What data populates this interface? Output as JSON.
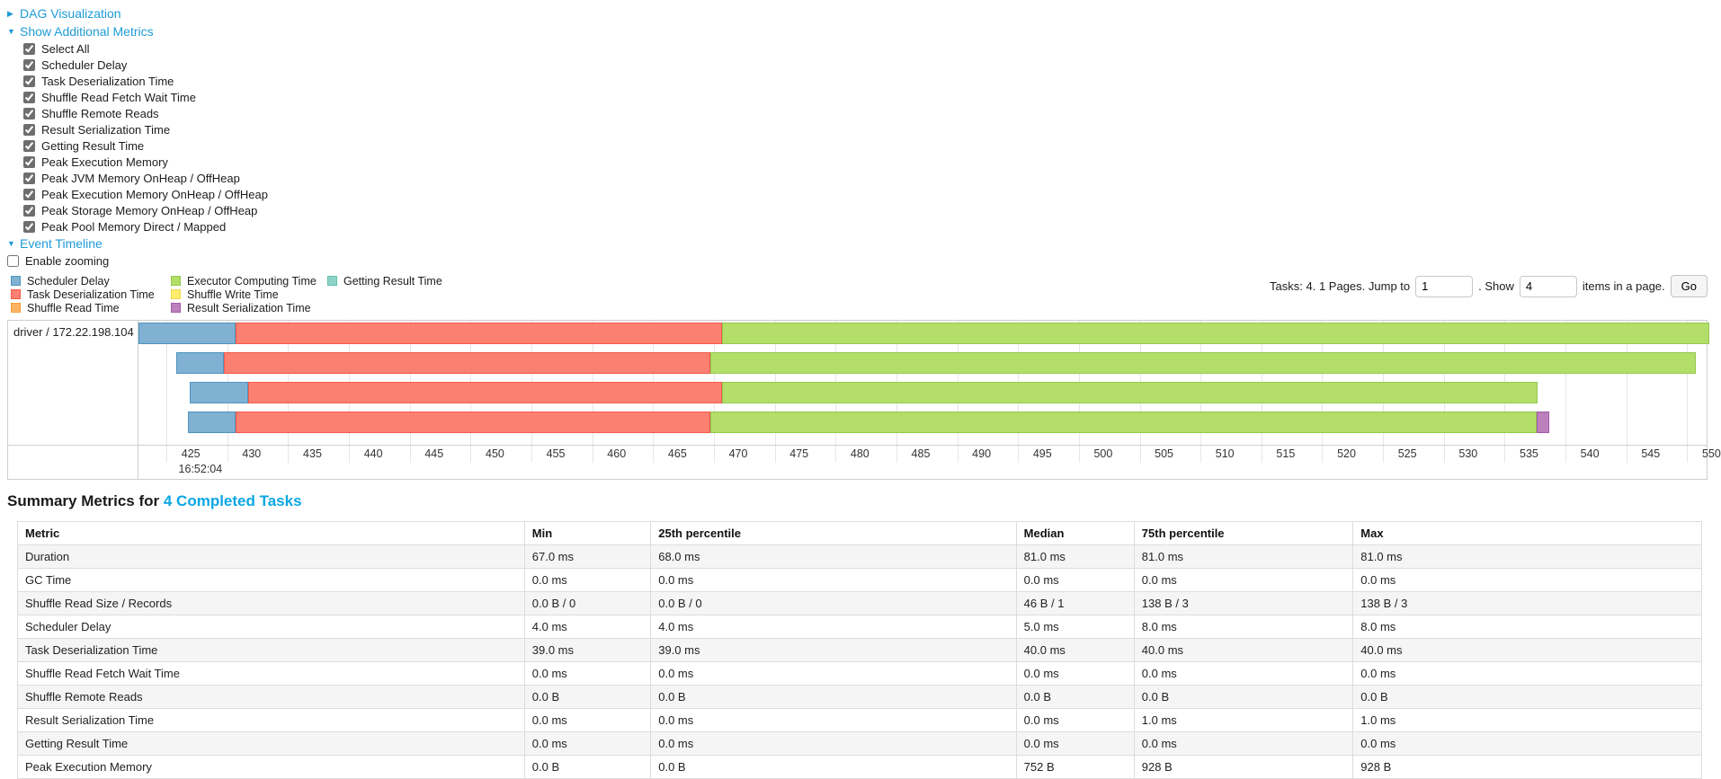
{
  "sections": {
    "dag": {
      "label": "DAG Visualization",
      "arrow": "▶"
    },
    "additional_metrics": {
      "label": "Show Additional Metrics",
      "arrow": "▼"
    },
    "event_timeline": {
      "label": "Event Timeline",
      "arrow": "▼"
    }
  },
  "metrics_checkboxes": [
    "Select All",
    "Scheduler Delay",
    "Task Deserialization Time",
    "Shuffle Read Fetch Wait Time",
    "Shuffle Remote Reads",
    "Result Serialization Time",
    "Getting Result Time",
    "Peak Execution Memory",
    "Peak JVM Memory OnHeap / OffHeap",
    "Peak Execution Memory OnHeap / OffHeap",
    "Peak Storage Memory OnHeap / OffHeap",
    "Peak Pool Memory Direct / Mapped"
  ],
  "enable_zooming_label": "Enable zooming",
  "palette": {
    "scheduler_delay": {
      "fill": "#80B1D3",
      "border": "#4E94BE"
    },
    "task_deserialization": {
      "fill": "#FB8072",
      "border": "#F6594B"
    },
    "shuffle_read": {
      "fill": "#FDB462",
      "border": "#F89D3B"
    },
    "executor_computing": {
      "fill": "#B3DE69",
      "border": "#94C94F"
    },
    "shuffle_write": {
      "fill": "#FFED6F",
      "border": "#EDD94E"
    },
    "result_serialization": {
      "fill": "#BC80BD",
      "border": "#A35CA5"
    },
    "getting_result": {
      "fill": "#8DD3C7",
      "border": "#66BFAF"
    }
  },
  "legend_columns": [
    [
      {
        "type": "scheduler_delay",
        "label": "Scheduler Delay"
      },
      {
        "type": "task_deserialization",
        "label": "Task Deserialization Time"
      },
      {
        "type": "shuffle_read",
        "label": "Shuffle Read Time"
      }
    ],
    [
      {
        "type": "executor_computing",
        "label": "Executor Computing Time"
      },
      {
        "type": "shuffle_write",
        "label": "Shuffle Write Time"
      },
      {
        "type": "result_serialization",
        "label": "Result Serialization Time"
      }
    ],
    [
      {
        "type": "getting_result",
        "label": "Getting Result Time"
      }
    ]
  ],
  "pagination": {
    "prefix": "Tasks: 4. 1 Pages. Jump to",
    "jump_value": "1",
    "between": ". Show",
    "show_value": "4",
    "suffix": "items in a page.",
    "go_label": "Go"
  },
  "event_timeline": {
    "type": "timeline",
    "row_label": "driver / 172.22.198.104",
    "axis": {
      "min": 420.7,
      "max": 549.6,
      "ticks": [
        425,
        430,
        435,
        440,
        445,
        450,
        455,
        460,
        465,
        470,
        475,
        480,
        485,
        490,
        495,
        500,
        505,
        510,
        515,
        520,
        525,
        530,
        535,
        540,
        545,
        550
      ],
      "time_label": "16:52:04",
      "time_label_tick": 425
    },
    "tasks": [
      {
        "segments": [
          {
            "type": "scheduler_delay",
            "start": 420.7,
            "end": 428.7
          },
          {
            "type": "task_deserialization",
            "start": 428.7,
            "end": 468.7
          },
          {
            "type": "executor_computing",
            "start": 468.7,
            "end": 549.8
          }
        ]
      },
      {
        "segments": [
          {
            "type": "scheduler_delay",
            "start": 423.8,
            "end": 427.7
          },
          {
            "type": "task_deserialization",
            "start": 427.7,
            "end": 467.7
          },
          {
            "type": "executor_computing",
            "start": 467.7,
            "end": 548.7
          }
        ]
      },
      {
        "segments": [
          {
            "type": "scheduler_delay",
            "start": 424.9,
            "end": 429.7
          },
          {
            "type": "task_deserialization",
            "start": 429.7,
            "end": 468.7
          },
          {
            "type": "executor_computing",
            "start": 468.7,
            "end": 535.7
          }
        ]
      },
      {
        "segments": [
          {
            "type": "scheduler_delay",
            "start": 424.8,
            "end": 428.7
          },
          {
            "type": "task_deserialization",
            "start": 428.7,
            "end": 467.7
          },
          {
            "type": "executor_computing",
            "start": 467.7,
            "end": 535.6
          },
          {
            "type": "result_serialization",
            "start": 535.6,
            "end": 536.7
          }
        ]
      }
    ]
  },
  "summary": {
    "title": "Summary Metrics for",
    "title_link": "4 Completed Tasks",
    "table": {
      "headers": [
        "Metric",
        "Min",
        "25th percentile",
        "Median",
        "75th percentile",
        "Max"
      ],
      "rows": [
        [
          "Duration",
          "67.0 ms",
          "68.0 ms",
          "81.0 ms",
          "81.0 ms",
          "81.0 ms"
        ],
        [
          "GC Time",
          "0.0 ms",
          "0.0 ms",
          "0.0 ms",
          "0.0 ms",
          "0.0 ms"
        ],
        [
          "Shuffle Read Size / Records",
          "0.0 B / 0",
          "0.0 B / 0",
          "46 B / 1",
          "138 B / 3",
          "138 B / 3"
        ],
        [
          "Scheduler Delay",
          "4.0 ms",
          "4.0 ms",
          "5.0 ms",
          "8.0 ms",
          "8.0 ms"
        ],
        [
          "Task Deserialization Time",
          "39.0 ms",
          "39.0 ms",
          "40.0 ms",
          "40.0 ms",
          "40.0 ms"
        ],
        [
          "Shuffle Read Fetch Wait Time",
          "0.0 ms",
          "0.0 ms",
          "0.0 ms",
          "0.0 ms",
          "0.0 ms"
        ],
        [
          "Shuffle Remote Reads",
          "0.0 B",
          "0.0 B",
          "0.0 B",
          "0.0 B",
          "0.0 B"
        ],
        [
          "Result Serialization Time",
          "0.0 ms",
          "0.0 ms",
          "0.0 ms",
          "1.0 ms",
          "1.0 ms"
        ],
        [
          "Getting Result Time",
          "0.0 ms",
          "0.0 ms",
          "0.0 ms",
          "0.0 ms",
          "0.0 ms"
        ],
        [
          "Peak Execution Memory",
          "0.0 B",
          "0.0 B",
          "752 B",
          "928 B",
          "928 B"
        ]
      ]
    }
  }
}
